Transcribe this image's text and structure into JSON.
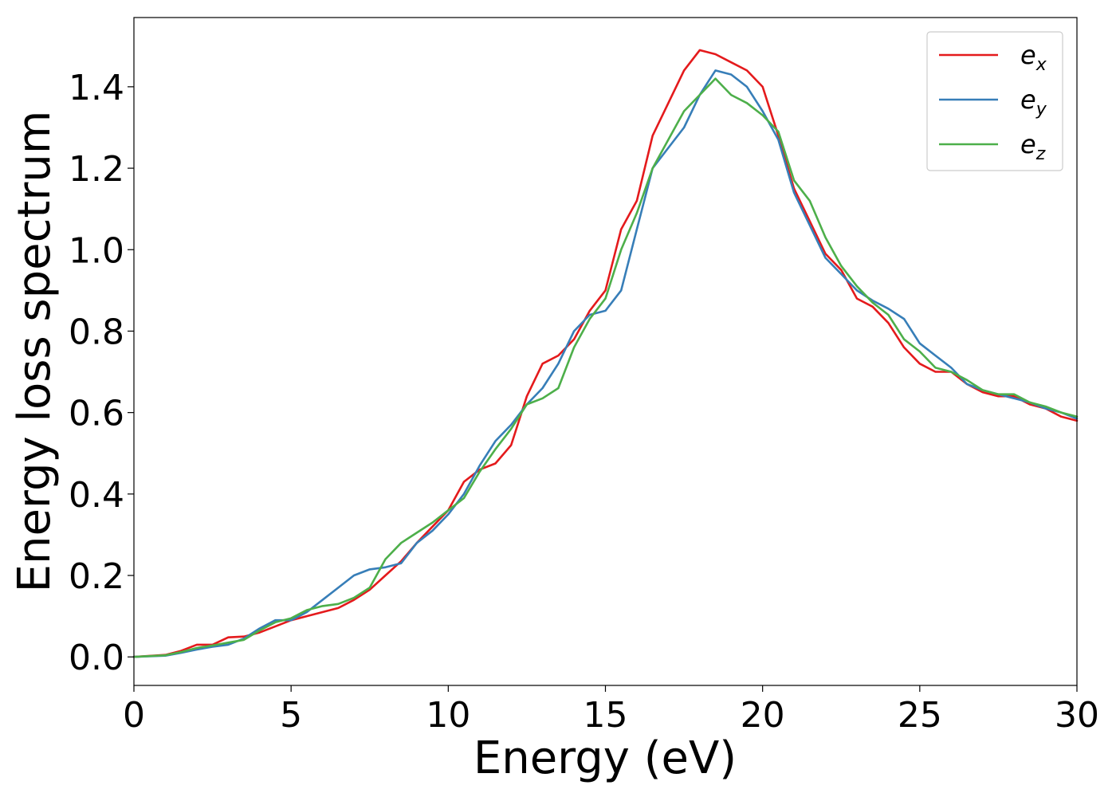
{
  "chart_data": {
    "type": "line",
    "xlabel": "Energy (eV)",
    "ylabel": "Energy loss spectrum",
    "xlim": [
      0,
      30
    ],
    "ylim": [
      -0.07,
      1.57
    ],
    "xticks": [
      0,
      5,
      10,
      15,
      20,
      25,
      30
    ],
    "xtick_labels": [
      "0",
      "5",
      "10",
      "15",
      "20",
      "25",
      "30"
    ],
    "yticks": [
      0.0,
      0.2,
      0.4,
      0.6,
      0.8,
      1.0,
      1.2,
      1.4
    ],
    "ytick_labels": [
      "0.0",
      "0.2",
      "0.4",
      "0.6",
      "0.8",
      "1.0",
      "1.2",
      "1.4"
    ],
    "grid": false,
    "legend_position": "top-right",
    "series": [
      {
        "name": "e_x",
        "label_base": "e",
        "label_sub": "x",
        "color": "#e41a1c",
        "x": [
          0,
          1,
          1.5,
          2,
          2.5,
          3,
          3.5,
          4,
          4.5,
          5,
          5.5,
          6,
          6.5,
          7,
          7.5,
          8,
          8.5,
          9,
          9.5,
          10,
          10.5,
          11,
          11.5,
          12,
          12.5,
          13,
          13.5,
          14,
          14.5,
          15,
          15.5,
          16,
          16.5,
          17,
          17.5,
          18,
          18.5,
          19,
          19.5,
          20,
          20.5,
          21,
          21.5,
          22,
          22.5,
          23,
          23.5,
          24,
          24.5,
          25,
          25.5,
          26,
          26.5,
          27,
          27.5,
          28,
          28.5,
          29,
          29.5,
          30
        ],
        "y": [
          0,
          0.005,
          0.015,
          0.03,
          0.03,
          0.048,
          0.05,
          0.06,
          0.075,
          0.09,
          0.1,
          0.11,
          0.12,
          0.14,
          0.165,
          0.2,
          0.235,
          0.28,
          0.32,
          0.36,
          0.43,
          0.46,
          0.475,
          0.52,
          0.64,
          0.72,
          0.74,
          0.78,
          0.85,
          0.9,
          1.05,
          1.12,
          1.28,
          1.36,
          1.44,
          1.49,
          1.48,
          1.46,
          1.44,
          1.4,
          1.28,
          1.15,
          1.07,
          0.99,
          0.95,
          0.88,
          0.86,
          0.82,
          0.76,
          0.72,
          0.7,
          0.7,
          0.67,
          0.65,
          0.64,
          0.64,
          0.62,
          0.61,
          0.59,
          0.58
        ]
      },
      {
        "name": "e_y",
        "label_base": "e",
        "label_sub": "y",
        "color": "#377eb8",
        "x": [
          0,
          1,
          1.5,
          2,
          2.5,
          3,
          3.5,
          4,
          4.5,
          5,
          5.5,
          6,
          6.5,
          7,
          7.5,
          8,
          8.5,
          9,
          9.5,
          10,
          10.5,
          11,
          11.5,
          12,
          12.5,
          13,
          13.5,
          14,
          14.5,
          15,
          15.5,
          16,
          16.5,
          17,
          17.5,
          18,
          18.5,
          19,
          19.5,
          20,
          20.5,
          21,
          21.5,
          22,
          22.5,
          23,
          23.5,
          24,
          24.5,
          25,
          25.5,
          26,
          26.5,
          27,
          27.5,
          28,
          28.5,
          29,
          29.5,
          30
        ],
        "y": [
          0,
          0.003,
          0.01,
          0.018,
          0.025,
          0.03,
          0.045,
          0.07,
          0.09,
          0.09,
          0.11,
          0.14,
          0.17,
          0.2,
          0.215,
          0.22,
          0.23,
          0.28,
          0.31,
          0.35,
          0.4,
          0.47,
          0.53,
          0.57,
          0.62,
          0.66,
          0.72,
          0.8,
          0.84,
          0.85,
          0.9,
          1.05,
          1.2,
          1.25,
          1.3,
          1.38,
          1.44,
          1.43,
          1.4,
          1.34,
          1.27,
          1.14,
          1.06,
          0.98,
          0.94,
          0.9,
          0.875,
          0.855,
          0.83,
          0.77,
          0.74,
          0.71,
          0.67,
          0.655,
          0.645,
          0.635,
          0.625,
          0.61,
          0.6,
          0.585
        ]
      },
      {
        "name": "e_z",
        "label_base": "e",
        "label_sub": "z",
        "color": "#4daf4a",
        "x": [
          0,
          1,
          1.5,
          2,
          2.5,
          3,
          3.5,
          4,
          4.5,
          5,
          5.5,
          6,
          6.5,
          7,
          7.5,
          8,
          8.5,
          9,
          9.5,
          10,
          10.5,
          11,
          11.5,
          12,
          12.5,
          13,
          13.5,
          14,
          14.5,
          15,
          15.5,
          16,
          16.5,
          17,
          17.5,
          18,
          18.5,
          19,
          19.5,
          20,
          20.5,
          21,
          21.5,
          22,
          22.5,
          23,
          23.5,
          24,
          24.5,
          25,
          25.5,
          26,
          26.5,
          27,
          27.5,
          28,
          28.5,
          29,
          29.5,
          30
        ],
        "y": [
          0,
          0.004,
          0.012,
          0.022,
          0.028,
          0.035,
          0.042,
          0.065,
          0.085,
          0.095,
          0.115,
          0.125,
          0.13,
          0.145,
          0.17,
          0.24,
          0.28,
          0.305,
          0.33,
          0.36,
          0.39,
          0.455,
          0.51,
          0.56,
          0.62,
          0.635,
          0.66,
          0.76,
          0.83,
          0.88,
          1.0,
          1.09,
          1.2,
          1.27,
          1.34,
          1.38,
          1.42,
          1.38,
          1.36,
          1.33,
          1.29,
          1.17,
          1.12,
          1.03,
          0.96,
          0.91,
          0.87,
          0.84,
          0.78,
          0.75,
          0.71,
          0.7,
          0.68,
          0.655,
          0.645,
          0.645,
          0.625,
          0.615,
          0.6,
          0.59
        ]
      }
    ]
  }
}
